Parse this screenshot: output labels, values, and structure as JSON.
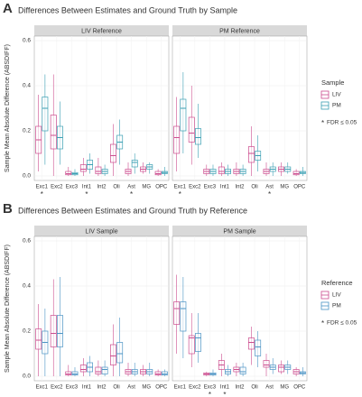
{
  "chart_data": [
    {
      "type": "box",
      "label": "A",
      "title": "Differences Between Estimates and Ground Truth by Sample",
      "ylabel": "Sample Mean Absolute Difference (ABSDIFF)",
      "categories": [
        "Exc1",
        "Exc2",
        "Exc3",
        "Int1",
        "Int2",
        "Oli",
        "Ast",
        "MG",
        "OPC"
      ],
      "ylim": [
        -0.02,
        0.62
      ],
      "yticks": [
        {
          "value": 0,
          "label": "0.0"
        },
        {
          "value": 0.2,
          "label": "0.2"
        },
        {
          "value": 0.4,
          "label": "0.4"
        },
        {
          "value": 0.6,
          "label": "0.6"
        }
      ],
      "grid": true,
      "legend_title": "Sample",
      "legend_position": "right",
      "marker": "*",
      "legend_note": "FDR ≤ 0.05",
      "facets": [
        {
          "title": "LIV Reference",
          "significant": [
            true,
            false,
            false,
            true,
            false,
            false,
            true,
            false,
            false
          ],
          "series": [
            {
              "name": "LIV",
              "color": "#cc4c8e",
              "low": [
                0.02,
                0,
                0,
                0,
                0,
                0,
                0,
                0.01,
                0
              ],
              "q1": [
                0.1,
                0.12,
                0.005,
                0.02,
                0.01,
                0.06,
                0.01,
                0.02,
                0.005
              ],
              "median": [
                0.16,
                0.18,
                0.01,
                0.03,
                0.02,
                0.09,
                0.02,
                0.03,
                0.01
              ],
              "q3": [
                0.22,
                0.27,
                0.02,
                0.05,
                0.04,
                0.14,
                0.03,
                0.04,
                0.02
              ],
              "high": [
                0.36,
                0.45,
                0.04,
                0.08,
                0.08,
                0.23,
                0.06,
                0.06,
                0.03
              ]
            },
            {
              "name": "PM",
              "color": "#3a9fb3",
              "low": [
                0.05,
                0.05,
                0,
                0.01,
                0,
                0.05,
                0.01,
                0.01,
                0
              ],
              "q1": [
                0.2,
                0.12,
                0.005,
                0.03,
                0.01,
                0.12,
                0.04,
                0.03,
                0.01
              ],
              "median": [
                0.3,
                0.17,
                0.01,
                0.05,
                0.02,
                0.15,
                0.06,
                0.04,
                0.015
              ],
              "q3": [
                0.35,
                0.22,
                0.015,
                0.07,
                0.03,
                0.18,
                0.07,
                0.05,
                0.02
              ],
              "high": [
                0.45,
                0.33,
                0.03,
                0.1,
                0.05,
                0.25,
                0.1,
                0.06,
                0.04
              ]
            }
          ]
        },
        {
          "title": "PM Reference",
          "significant": [
            true,
            false,
            false,
            false,
            false,
            false,
            true,
            false,
            false
          ],
          "series": [
            {
              "name": "LIV",
              "color": "#cc4c8e",
              "low": [
                0.02,
                0.05,
                0,
                0,
                0,
                0,
                0,
                0,
                0
              ],
              "q1": [
                0.1,
                0.15,
                0.01,
                0.01,
                0.01,
                0.06,
                0.01,
                0.02,
                0.005
              ],
              "median": [
                0.17,
                0.19,
                0.02,
                0.02,
                0.02,
                0.1,
                0.02,
                0.03,
                0.01
              ],
              "q3": [
                0.22,
                0.26,
                0.03,
                0.04,
                0.03,
                0.13,
                0.03,
                0.04,
                0.02
              ],
              "high": [
                0.35,
                0.4,
                0.05,
                0.06,
                0.06,
                0.22,
                0.06,
                0.06,
                0.03
              ]
            },
            {
              "name": "PM",
              "color": "#3a9fb3",
              "low": [
                0.1,
                0.08,
                0,
                0,
                0,
                0.02,
                0,
                0.01,
                0
              ],
              "q1": [
                0.2,
                0.14,
                0.01,
                0.01,
                0.01,
                0.07,
                0.02,
                0.02,
                0.01
              ],
              "median": [
                0.3,
                0.17,
                0.02,
                0.02,
                0.02,
                0.09,
                0.03,
                0.03,
                0.015
              ],
              "q3": [
                0.34,
                0.21,
                0.03,
                0.03,
                0.03,
                0.11,
                0.04,
                0.04,
                0.02
              ],
              "high": [
                0.46,
                0.32,
                0.05,
                0.05,
                0.05,
                0.18,
                0.06,
                0.06,
                0.04
              ]
            }
          ]
        }
      ]
    },
    {
      "type": "box",
      "label": "B",
      "title": "Differences Between Estimates and Ground Truth by Reference",
      "ylabel": "Sample Mean Absolute Difference (ABSDIFF)",
      "categories": [
        "Exc1",
        "Exc2",
        "Exc3",
        "Int1",
        "Int2",
        "Oli",
        "Ast",
        "MG",
        "OPC"
      ],
      "ylim": [
        -0.02,
        0.62
      ],
      "yticks": [
        {
          "value": 0,
          "label": "0.0"
        },
        {
          "value": 0.2,
          "label": "0.2"
        },
        {
          "value": 0.4,
          "label": "0.4"
        },
        {
          "value": 0.6,
          "label": "0.6"
        }
      ],
      "grid": true,
      "legend_title": "Reference",
      "legend_position": "right",
      "marker": "*",
      "legend_note": "FDR ≤ 0.05",
      "facets": [
        {
          "title": "LIV Sample",
          "significant": [
            false,
            false,
            false,
            false,
            false,
            false,
            false,
            false,
            false
          ],
          "series": [
            {
              "name": "LIV",
              "color": "#cc4c8e",
              "low": [
                0,
                0,
                0,
                0,
                0,
                0,
                0,
                0,
                0
              ],
              "q1": [
                0.12,
                0.13,
                0.005,
                0.02,
                0.01,
                0.05,
                0.01,
                0.01,
                0.005
              ],
              "median": [
                0.16,
                0.19,
                0.01,
                0.03,
                0.02,
                0.09,
                0.02,
                0.02,
                0.01
              ],
              "q3": [
                0.21,
                0.27,
                0.02,
                0.05,
                0.04,
                0.14,
                0.03,
                0.03,
                0.02
              ],
              "high": [
                0.32,
                0.43,
                0.05,
                0.08,
                0.07,
                0.23,
                0.06,
                0.05,
                0.03
              ]
            },
            {
              "name": "PM",
              "color": "#4a93c4",
              "low": [
                0,
                0,
                0,
                0,
                0,
                0,
                0,
                0,
                0
              ],
              "q1": [
                0.1,
                0.13,
                0.005,
                0.02,
                0.01,
                0.06,
                0.01,
                0.01,
                0.005
              ],
              "median": [
                0.15,
                0.19,
                0.01,
                0.04,
                0.03,
                0.1,
                0.02,
                0.02,
                0.01
              ],
              "q3": [
                0.2,
                0.27,
                0.02,
                0.06,
                0.04,
                0.15,
                0.03,
                0.03,
                0.02
              ],
              "high": [
                0.3,
                0.44,
                0.04,
                0.09,
                0.07,
                0.26,
                0.06,
                0.06,
                0.03
              ]
            }
          ]
        },
        {
          "title": "PM Sample",
          "significant": [
            false,
            false,
            true,
            true,
            false,
            false,
            false,
            false,
            false
          ],
          "series": [
            {
              "name": "LIV",
              "color": "#cc4c8e",
              "low": [
                0.1,
                0.04,
                0,
                0,
                0,
                0.05,
                0,
                0.01,
                0
              ],
              "q1": [
                0.23,
                0.1,
                0.005,
                0.03,
                0.02,
                0.12,
                0.04,
                0.02,
                0.01
              ],
              "median": [
                0.3,
                0.17,
                0.01,
                0.05,
                0.03,
                0.15,
                0.05,
                0.04,
                0.02
              ],
              "q3": [
                0.33,
                0.18,
                0.015,
                0.07,
                0.04,
                0.17,
                0.07,
                0.05,
                0.03
              ],
              "high": [
                0.45,
                0.28,
                0.02,
                0.1,
                0.06,
                0.22,
                0.1,
                0.07,
                0.04
              ]
            },
            {
              "name": "PM",
              "color": "#4a93c4",
              "low": [
                0.08,
                0.06,
                0,
                0,
                0,
                0.04,
                0.01,
                0.01,
                0
              ],
              "q1": [
                0.2,
                0.11,
                0.005,
                0.01,
                0.01,
                0.09,
                0.03,
                0.03,
                0.01
              ],
              "median": [
                0.3,
                0.17,
                0.01,
                0.02,
                0.02,
                0.13,
                0.04,
                0.04,
                0.015
              ],
              "q3": [
                0.33,
                0.19,
                0.015,
                0.03,
                0.04,
                0.16,
                0.05,
                0.05,
                0.02
              ],
              "high": [
                0.44,
                0.28,
                0.03,
                0.05,
                0.06,
                0.2,
                0.08,
                0.07,
                0.04
              ]
            }
          ]
        }
      ]
    }
  ]
}
